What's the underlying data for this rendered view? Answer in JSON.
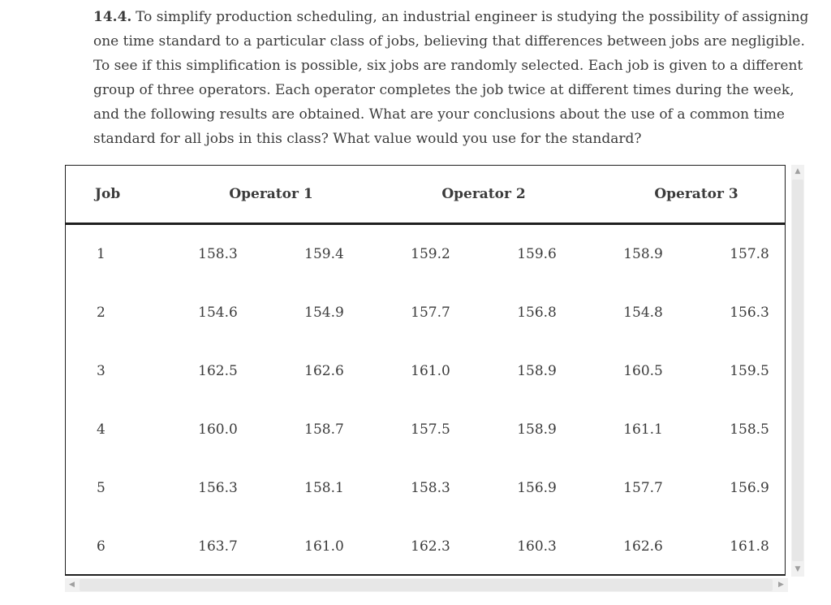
{
  "problem": {
    "number": "14.4.",
    "lines": [
      "To simplify production scheduling, an industrial engineer is studying the possibility of assigning",
      "one time standard to a particular class of jobs, believing that differences between jobs are negligible.",
      "To see if this simplification is possible, six jobs are randomly selected. Each job is given to a different",
      "group of three operators. Each operator completes the job twice at different times during the week,",
      "and the following results are obtained. What are your conclusions about the use of a common time",
      "standard for all jobs in this class? What value would you use for the standard?"
    ]
  },
  "table": {
    "columns": [
      {
        "label": "Job",
        "colspan": 1
      },
      {
        "label": "Operator 1",
        "colspan": 2
      },
      {
        "label": "Operator 2",
        "colspan": 2
      },
      {
        "label": "Operator 3",
        "colspan": 2
      }
    ],
    "rows": [
      {
        "job": "1",
        "values": [
          "158.3",
          "159.4",
          "159.2",
          "159.6",
          "158.9",
          "157.8"
        ]
      },
      {
        "job": "2",
        "values": [
          "154.6",
          "154.9",
          "157.7",
          "156.8",
          "154.8",
          "156.3"
        ]
      },
      {
        "job": "3",
        "values": [
          "162.5",
          "162.6",
          "161.0",
          "158.9",
          "160.5",
          "159.5"
        ]
      },
      {
        "job": "4",
        "values": [
          "160.0",
          "158.7",
          "157.5",
          "158.9",
          "161.1",
          "158.5"
        ]
      },
      {
        "job": "5",
        "values": [
          "156.3",
          "158.1",
          "158.3",
          "156.9",
          "157.7",
          "156.9"
        ]
      },
      {
        "job": "6",
        "values": [
          "163.7",
          "161.0",
          "162.3",
          "160.3",
          "162.6",
          "161.8"
        ]
      }
    ]
  },
  "scrollbars": {
    "up_glyph": "▲",
    "down_glyph": "▼",
    "left_glyph": "◀",
    "right_glyph": "▶"
  },
  "colors": {
    "text": "#3b3b3b",
    "table_border": "#1f1f1f",
    "scrollbar_track": "#f1f1f1",
    "scrollbar_thumb": "#e7e7e7",
    "scrollbar_arrow": "#9f9f9f"
  }
}
